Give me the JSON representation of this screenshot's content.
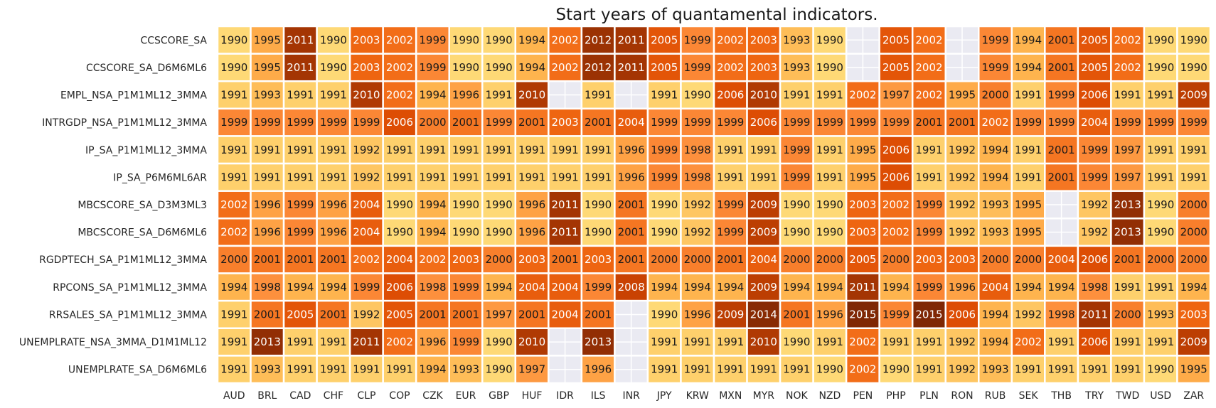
{
  "chart_data": {
    "type": "heatmap",
    "title": "Start years of quantamental indicators.",
    "xlabel": "",
    "ylabel": "",
    "columns": [
      "AUD",
      "BRL",
      "CAD",
      "CHF",
      "CLP",
      "COP",
      "CZK",
      "EUR",
      "GBP",
      "HUF",
      "IDR",
      "ILS",
      "INR",
      "JPY",
      "KRW",
      "MXN",
      "MYR",
      "NOK",
      "NZD",
      "PEN",
      "PHP",
      "PLN",
      "RON",
      "RUB",
      "SEK",
      "THB",
      "TRY",
      "TWD",
      "USD",
      "ZAR"
    ],
    "rows": [
      "CCSCORE_SA",
      "CCSCORE_SA_D6M6ML6",
      "EMPL_NSA_P1M1ML12_3MMA",
      "INTRGDP_NSA_P1M1ML12_3MMA",
      "IP_SA_P1M1ML12_3MMA",
      "IP_SA_P6M6ML6AR",
      "MBCSCORE_SA_D3M3ML3",
      "MBCSCORE_SA_D6M6ML6",
      "RGDPTECH_SA_P1M1ML12_3MMA",
      "RPCONS_SA_P1M1ML12_3MMA",
      "RRSALES_SA_P1M1ML12_3MMA",
      "UNEMPLRATE_NSA_3MMA_D1M1ML12",
      "UNEMPLRATE_SA_D6M6ML6"
    ],
    "values": [
      [
        1990,
        1995,
        2011,
        1990,
        2003,
        2002,
        1999,
        1990,
        1990,
        1994,
        2002,
        2012,
        2011,
        2005,
        1999,
        2002,
        2003,
        1993,
        1990,
        null,
        2005,
        2002,
        null,
        1999,
        1994,
        2001,
        2005,
        2002,
        1990,
        1990
      ],
      [
        1990,
        1995,
        2011,
        1990,
        2003,
        2002,
        1999,
        1990,
        1990,
        1994,
        2002,
        2012,
        2011,
        2005,
        1999,
        2002,
        2003,
        1993,
        1990,
        null,
        2005,
        2002,
        null,
        1999,
        1994,
        2001,
        2005,
        2002,
        1990,
        1990
      ],
      [
        1991,
        1993,
        1991,
        1991,
        2010,
        2002,
        1994,
        1996,
        1991,
        2010,
        null,
        1991,
        null,
        1991,
        1990,
        2006,
        2010,
        1991,
        1991,
        2002,
        1997,
        2002,
        1995,
        2000,
        1991,
        1999,
        2006,
        1991,
        1991,
        2009
      ],
      [
        1999,
        1999,
        1999,
        1999,
        1999,
        2006,
        2000,
        2001,
        1999,
        2001,
        2003,
        2001,
        2004,
        1999,
        1999,
        1999,
        2006,
        1999,
        1999,
        1999,
        1999,
        2001,
        2001,
        2002,
        1999,
        1999,
        2004,
        1999,
        1999,
        1999
      ],
      [
        1991,
        1991,
        1991,
        1991,
        1992,
        1991,
        1991,
        1991,
        1991,
        1991,
        1991,
        1991,
        1996,
        1999,
        1998,
        1991,
        1991,
        1999,
        1991,
        1995,
        2006,
        1991,
        1992,
        1994,
        1991,
        2001,
        1999,
        1997,
        1991,
        1991
      ],
      [
        1991,
        1991,
        1991,
        1991,
        1992,
        1991,
        1991,
        1991,
        1991,
        1991,
        1991,
        1991,
        1996,
        1999,
        1998,
        1991,
        1991,
        1999,
        1991,
        1995,
        2006,
        1991,
        1992,
        1994,
        1991,
        2001,
        1999,
        1997,
        1991,
        1991
      ],
      [
        2002,
        1996,
        1999,
        1996,
        2004,
        1990,
        1994,
        1990,
        1990,
        1996,
        2011,
        1990,
        2001,
        1990,
        1992,
        1999,
        2009,
        1990,
        1990,
        2003,
        2002,
        1999,
        1992,
        1993,
        1995,
        null,
        1992,
        2013,
        1990,
        2000
      ],
      [
        2002,
        1996,
        1999,
        1996,
        2004,
        1990,
        1994,
        1990,
        1990,
        1996,
        2011,
        1990,
        2001,
        1990,
        1992,
        1999,
        2009,
        1990,
        1990,
        2003,
        2002,
        1999,
        1992,
        1993,
        1995,
        null,
        1992,
        2013,
        1990,
        2000
      ],
      [
        2000,
        2001,
        2001,
        2001,
        2002,
        2004,
        2002,
        2003,
        2000,
        2003,
        2001,
        2003,
        2001,
        2000,
        2000,
        2001,
        2004,
        2000,
        2000,
        2005,
        2000,
        2003,
        2003,
        2000,
        2000,
        2004,
        2006,
        2001,
        2000,
        2000
      ],
      [
        1994,
        1998,
        1994,
        1994,
        1999,
        2006,
        1998,
        1999,
        1994,
        2004,
        2004,
        1999,
        2008,
        1994,
        1994,
        1994,
        2009,
        1994,
        1994,
        2011,
        1994,
        1999,
        1996,
        2004,
        1994,
        1994,
        1998,
        1991,
        1991,
        1994
      ],
      [
        1991,
        2001,
        2005,
        2001,
        1992,
        2005,
        2001,
        2001,
        1997,
        2001,
        2004,
        2001,
        null,
        1990,
        1996,
        2009,
        2014,
        2001,
        1996,
        2015,
        1999,
        2015,
        2006,
        1994,
        1992,
        1998,
        2011,
        2000,
        1993,
        2003
      ],
      [
        1991,
        2013,
        1991,
        1991,
        2011,
        2002,
        1996,
        1999,
        1990,
        2010,
        null,
        2013,
        null,
        1991,
        1991,
        1991,
        2010,
        1990,
        1991,
        2002,
        1991,
        1991,
        1992,
        1994,
        2002,
        1991,
        2006,
        1991,
        1991,
        2009
      ],
      [
        1991,
        1993,
        1991,
        1991,
        1991,
        1991,
        1994,
        1993,
        1990,
        1997,
        null,
        1996,
        null,
        1991,
        1991,
        1991,
        1991,
        1991,
        1990,
        2002,
        1990,
        1991,
        1992,
        1993,
        1991,
        1991,
        1991,
        1991,
        1990,
        1995
      ]
    ],
    "color_scale": {
      "min": 1990,
      "max": 2015,
      "colormap": "YlOrBr",
      "stops": [
        "#fed976",
        "#feb24c",
        "#fd8d3c",
        "#f16913",
        "#d94801",
        "#a63603",
        "#7f2704"
      ],
      "missing_color": "#eaeaf2",
      "grid_color": "#ffffff"
    }
  }
}
